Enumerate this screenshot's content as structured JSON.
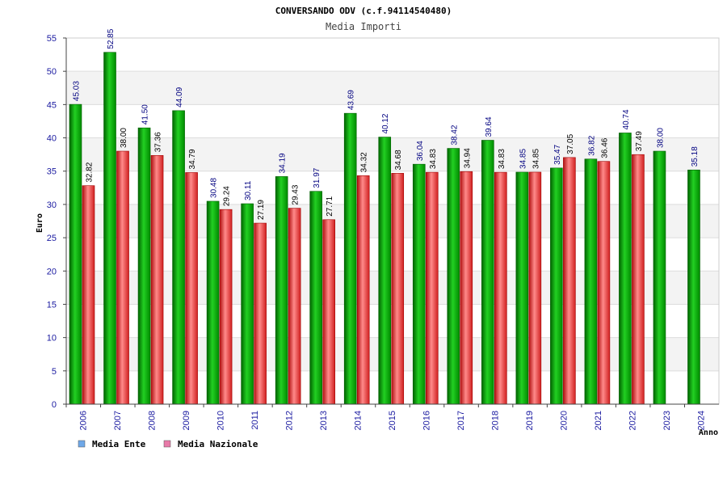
{
  "chart_data": {
    "type": "bar",
    "title": "CONVERSANDO ODV (c.f.94114540480)",
    "subtitle": "Media Importi",
    "xlabel": "Anno",
    "ylabel": "Euro",
    "ylim": [
      0,
      55
    ],
    "yticks": [
      0,
      5,
      10,
      15,
      20,
      25,
      30,
      35,
      40,
      45,
      50,
      55
    ],
    "categories": [
      "2006",
      "2007",
      "2008",
      "2009",
      "2010",
      "2011",
      "2012",
      "2013",
      "2014",
      "2015",
      "2016",
      "2017",
      "2018",
      "2019",
      "2020",
      "2021",
      "2022",
      "2023",
      "2024"
    ],
    "series": [
      {
        "name": "Media Ente",
        "legend_color": "#6fa8e8",
        "bar_color": "#00b000",
        "label_color": "#000080",
        "values": [
          45.03,
          52.85,
          41.5,
          44.09,
          30.48,
          30.11,
          34.19,
          31.97,
          43.69,
          40.12,
          36.04,
          38.42,
          39.64,
          34.85,
          35.47,
          36.82,
          40.74,
          38.0,
          35.18
        ],
        "labels": [
          "45.03",
          "52.85",
          "41.50",
          "44.09",
          "30.48",
          "30.11",
          "34.19",
          "31.97",
          "43.69",
          "40.12",
          "36.04",
          "38.42",
          "39.64",
          "34.85",
          "35.47",
          "36.82",
          "40.74",
          "38.00",
          "35.18"
        ]
      },
      {
        "name": "Media Nazionale",
        "legend_color": "#e87aa8",
        "bar_color": "#e83030",
        "label_color": "#000000",
        "values": [
          32.82,
          38.0,
          37.36,
          34.79,
          29.24,
          27.19,
          29.43,
          27.71,
          34.32,
          34.68,
          34.83,
          34.94,
          34.83,
          34.85,
          37.05,
          36.46,
          37.49,
          null,
          null
        ],
        "labels": [
          "32.82",
          "38.00",
          "37.36",
          "34.79",
          "29.24",
          "27.19",
          "29.43",
          "27.71",
          "34.32",
          "34.68",
          "34.83",
          "34.94",
          "34.83",
          "34.85",
          "37.05",
          "36.46",
          "37.49",
          "",
          ""
        ]
      }
    ],
    "legend_position": "bottom-left",
    "grid": true
  }
}
